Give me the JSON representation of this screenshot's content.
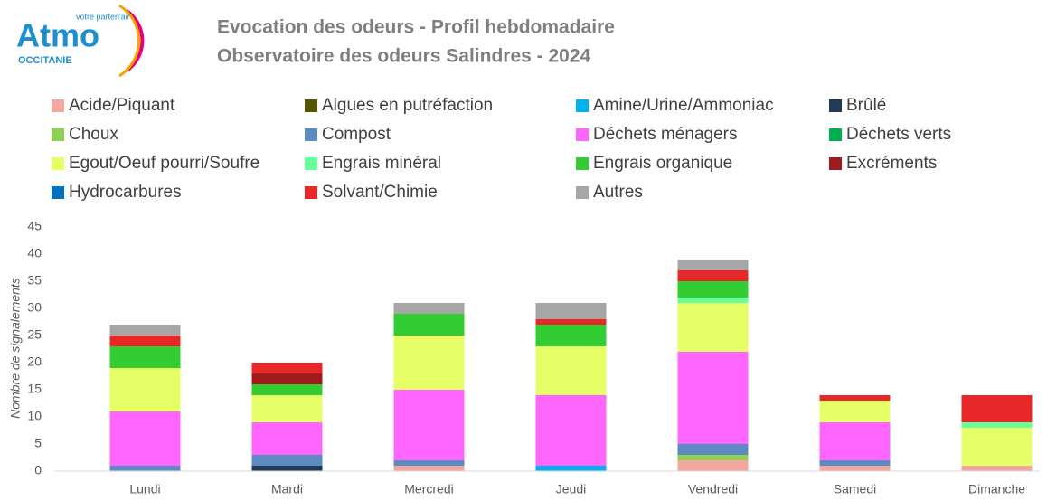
{
  "logo": {
    "name": "Atmo",
    "tagline": "votre parten'air",
    "region": "OCCITANIE"
  },
  "chart_data": {
    "type": "stacked-bar",
    "title": "Evocation des odeurs - Profil hebdomadaire",
    "subtitle": "Observatoire des odeurs Salindres - 2024",
    "y_label": "Nombre de signalements",
    "categories": [
      "Lundi",
      "Mardi",
      "Mercredi",
      "Jeudi",
      "Vendredi",
      "Samedi",
      "Dimanche"
    ],
    "ylim": [
      0,
      45
    ],
    "yticks": [
      0,
      5,
      10,
      15,
      20,
      25,
      30,
      35,
      40,
      45
    ],
    "grid": false,
    "legend": "top",
    "series": [
      {
        "name": "Acide/Piquant",
        "color": "#f4a6a0",
        "values": [
          0,
          0,
          1,
          0,
          2,
          1,
          1
        ]
      },
      {
        "name": "Algues en putréfaction",
        "color": "#565600",
        "values": [
          0,
          0,
          0,
          0,
          0,
          0,
          0
        ]
      },
      {
        "name": "Amine/Urine/Ammoniac",
        "color": "#00b0f0",
        "values": [
          0,
          0,
          0,
          1,
          0,
          0,
          0
        ]
      },
      {
        "name": "Brûlé",
        "color": "#1f3b55",
        "values": [
          0,
          1,
          0,
          0,
          0,
          0,
          0
        ]
      },
      {
        "name": "Choux",
        "color": "#8fd14f",
        "values": [
          0,
          0,
          0,
          0,
          1,
          0,
          0
        ]
      },
      {
        "name": "Compost",
        "color": "#5b8bc0",
        "values": [
          1,
          2,
          1,
          0,
          2,
          1,
          0
        ]
      },
      {
        "name": "Déchets ménagers",
        "color": "#ff66ff",
        "values": [
          10,
          6,
          13,
          13,
          17,
          7,
          0
        ]
      },
      {
        "name": "Déchets verts",
        "color": "#00b050",
        "values": [
          0,
          0,
          0,
          0,
          0,
          0,
          0
        ]
      },
      {
        "name": "Egout/Oeuf pourri/Soufre",
        "color": "#e6ff66",
        "values": [
          8,
          5,
          10,
          9,
          9,
          4,
          7
        ]
      },
      {
        "name": "Engrais minéral",
        "color": "#66ff99",
        "values": [
          0,
          0,
          0,
          0,
          1,
          0,
          1
        ]
      },
      {
        "name": "Engrais organique",
        "color": "#33cc33",
        "values": [
          4,
          2,
          4,
          4,
          3,
          0,
          0
        ]
      },
      {
        "name": "Excréments",
        "color": "#a01c1c",
        "values": [
          0,
          2,
          0,
          0,
          0,
          0,
          0
        ]
      },
      {
        "name": "Hydrocarbures",
        "color": "#0070c0",
        "values": [
          0,
          0,
          0,
          0,
          0,
          0,
          0
        ]
      },
      {
        "name": "Solvant/Chimie",
        "color": "#e82828",
        "values": [
          2,
          2,
          0,
          1,
          2,
          1,
          5
        ]
      },
      {
        "name": "Autres",
        "color": "#a6a6a6",
        "values": [
          2,
          0,
          2,
          3,
          2,
          0,
          0
        ]
      }
    ]
  }
}
